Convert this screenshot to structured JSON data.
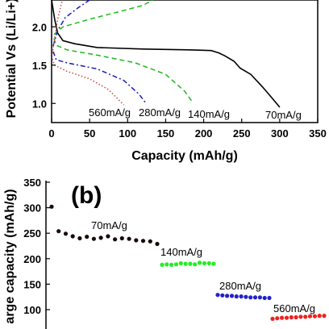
{
  "chart_data": [
    {
      "type": "line",
      "xlabel": "Capacity (mAh/g)",
      "ylabel": "Potential Vs (Li/Li+)",
      "xlim": [
        0,
        350
      ],
      "ylim": [
        0.75,
        2.35
      ],
      "xticks": [
        "0",
        "50",
        "100",
        "150",
        "200",
        "250",
        "300",
        "350"
      ],
      "yticks": [
        "1.0",
        "1.5",
        "2.0"
      ],
      "series": [
        {
          "name": "70mA/g",
          "color": "#000000",
          "style": "solid",
          "discharge": [
            [
              0,
              2.35
            ],
            [
              4,
              2.1
            ],
            [
              8,
              1.92
            ],
            [
              15,
              1.82
            ],
            [
              30,
              1.78
            ],
            [
              60,
              1.73
            ],
            [
              120,
              1.71
            ],
            [
              180,
              1.7
            ],
            [
              210,
              1.69
            ],
            [
              220,
              1.66
            ],
            [
              228,
              1.62
            ],
            [
              240,
              1.55
            ],
            [
              248,
              1.46
            ],
            [
              262,
              1.38
            ],
            [
              277,
              1.22
            ],
            [
              290,
              1.07
            ],
            [
              300,
              0.95
            ]
          ],
          "charge": []
        },
        {
          "name": "140mA/g",
          "color": "#1db81d",
          "style": "dash",
          "discharge": [
            [
              3,
              1.85
            ],
            [
              6,
              1.76
            ],
            [
              20,
              1.7
            ],
            [
              60,
              1.63
            ],
            [
              110,
              1.53
            ],
            [
              150,
              1.38
            ],
            [
              175,
              1.16
            ],
            [
              185,
              1.02
            ]
          ],
          "charge": [
            [
              3,
              1.9
            ],
            [
              15,
              2.0
            ],
            [
              50,
              2.1
            ],
            [
              90,
              2.2
            ],
            [
              120,
              2.28
            ],
            [
              133,
              2.35
            ]
          ]
        },
        {
          "name": "280mA/g",
          "color": "#1a1ab8",
          "style": "dashdot",
          "discharge": [
            [
              2,
              1.68
            ],
            [
              6,
              1.57
            ],
            [
              20,
              1.53
            ],
            [
              60,
              1.45
            ],
            [
              95,
              1.3
            ],
            [
              115,
              1.12
            ],
            [
              125,
              0.99
            ]
          ],
          "charge": [
            [
              2,
              1.75
            ],
            [
              8,
              1.95
            ],
            [
              18,
              2.12
            ],
            [
              35,
              2.25
            ],
            [
              50,
              2.35
            ]
          ]
        },
        {
          "name": "560mA/g",
          "color": "#cc4444",
          "style": "dot",
          "discharge": [
            [
              1,
              1.58
            ],
            [
              4,
              1.5
            ],
            [
              20,
              1.42
            ],
            [
              50,
              1.32
            ],
            [
              75,
              1.18
            ],
            [
              95,
              0.98
            ]
          ],
          "charge": [
            [
              1,
              1.65
            ],
            [
              4,
              1.85
            ],
            [
              8,
              2.1
            ],
            [
              14,
              2.35
            ]
          ]
        }
      ],
      "annotations": [
        "560mA/g",
        "280mA/g",
        "140mA/g",
        "70mA/g"
      ]
    },
    {
      "type": "scatter",
      "panel_label": "(b)",
      "ylabel": "arge capacity (mAh/g)",
      "ylim": [
        75,
        350
      ],
      "yticks": [
        "100",
        "150",
        "200",
        "250",
        "300",
        "350"
      ],
      "series": [
        {
          "name": "70mA/g",
          "color": "#1a0a0a",
          "values": [
            302,
            254,
            249,
            244,
            240,
            243,
            239,
            241,
            244,
            238,
            240,
            239,
            236,
            235,
            234,
            229
          ]
        },
        {
          "name": "140mA/g",
          "color": "#22ee22",
          "values": [
            188,
            189,
            188,
            189,
            191,
            190,
            190,
            189,
            192,
            191,
            191,
            190
          ]
        },
        {
          "name": "280mA/g",
          "color": "#2222cc",
          "values": [
            129,
            128,
            127,
            127,
            126,
            126,
            125,
            124,
            124,
            124,
            123,
            123
          ]
        },
        {
          "name": "560mA/g",
          "color": "#ee2222",
          "values": [
            82,
            83,
            84,
            84,
            85,
            85,
            86,
            86,
            87,
            87,
            88,
            88
          ]
        }
      ],
      "annotations": [
        "70mA/g",
        "140mA/g",
        "280mA/g",
        "560mA/g"
      ]
    }
  ]
}
